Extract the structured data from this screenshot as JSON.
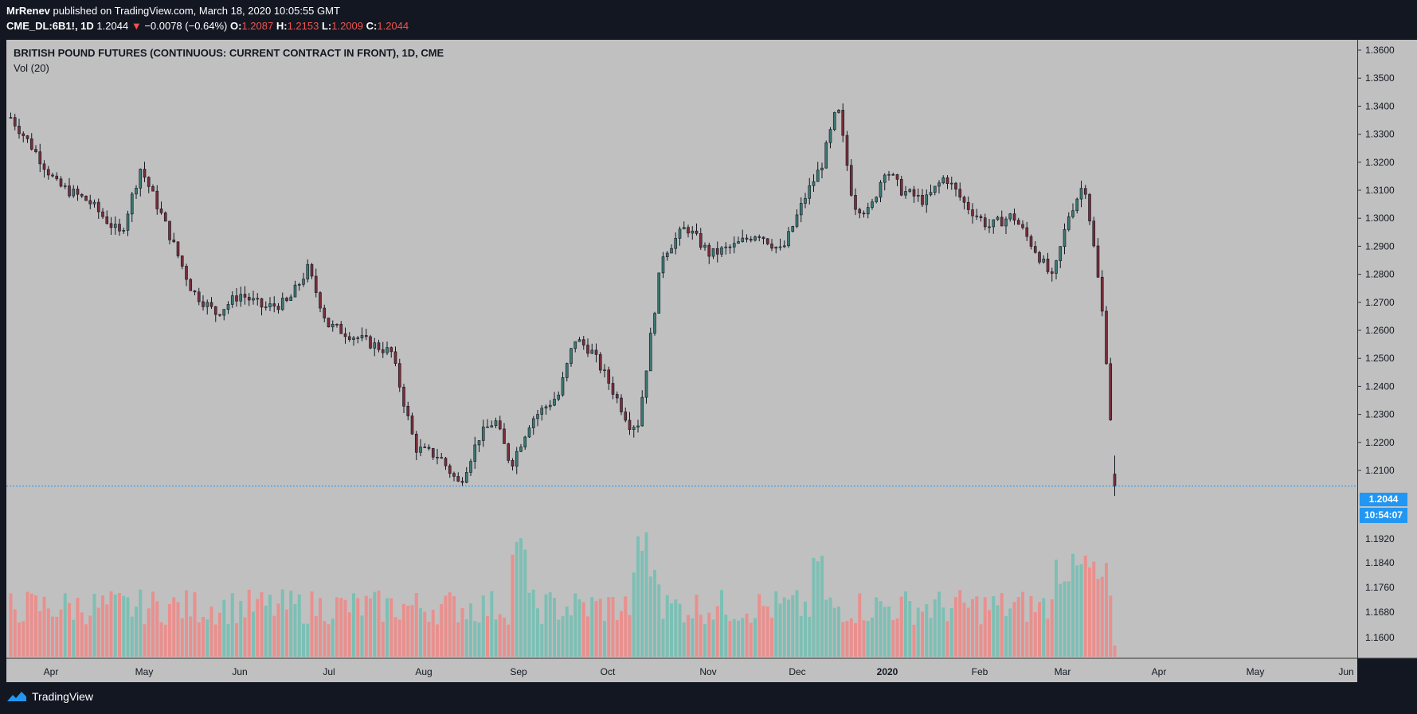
{
  "header": {
    "author": "MrRenev",
    "published_text": "published on TradingView.com, March 18, 2020 10:05:55 GMT",
    "symbol": "CME_DL:6B1!, 1D",
    "last": "1.2044",
    "change": "−0.0078 (−0.64%)",
    "open_label": "O:",
    "open": "1.2087",
    "high_label": "H:",
    "high": "1.2153",
    "low_label": "L:",
    "low": "1.2009",
    "close_label": "C:",
    "close": "1.2044"
  },
  "series_title": "BRITISH POUND FUTURES (CONTINUOUS: CURRENT CONTRACT IN FRONT), 1D, CME",
  "volume_title": "Vol (20)",
  "price_tag": "1.2044",
  "countdown_tag": "10:54:07",
  "footer_brand": "TradingView",
  "colors": {
    "up": "#22ab94",
    "down": "#f23645",
    "vol_up": "#7dbfb4",
    "vol_down": "#e9908e",
    "price_line": "#2196f3"
  },
  "chart_data": {
    "type": "candlestick",
    "title": "BRITISH POUND FUTURES (CONTINUOUS: CURRENT CONTRACT IN FRONT), 1D, CME",
    "y_ticks": [
      "1.3600",
      "1.3500",
      "1.3400",
      "1.3300",
      "1.3200",
      "1.3100",
      "1.3000",
      "1.2900",
      "1.2800",
      "1.2700",
      "1.2600",
      "1.2500",
      "1.2400",
      "1.2300",
      "1.2200",
      "1.2100"
    ],
    "vol_ticks": [
      "1.1920",
      "1.1840",
      "1.1760",
      "1.1680",
      "1.1600"
    ],
    "ylim": [
      1.199,
      1.366
    ],
    "x_labels": [
      "Apr",
      "May",
      "Jun",
      "Jul",
      "Aug",
      "Sep",
      "Oct",
      "Nov",
      "Dec",
      "2020",
      "Feb",
      "Mar",
      "Apr",
      "May",
      "Jun"
    ],
    "last_price": 1.2044,
    "key_points": [
      {
        "date": "2019-03",
        "close": 1.336
      },
      {
        "date": "2019-04",
        "close": 1.303
      },
      {
        "date": "2019-05",
        "close": 1.276
      },
      {
        "date": "2019-06",
        "close": 1.272
      },
      {
        "date": "2019-07",
        "close": 1.255
      },
      {
        "date": "2019-08",
        "close": 1.214
      },
      {
        "date": "2019-09-03",
        "close": 1.205
      },
      {
        "date": "2019-09",
        "close": 1.258
      },
      {
        "date": "2019-10",
        "close": 1.225
      },
      {
        "date": "2019-10-22",
        "close": 1.295
      },
      {
        "date": "2019-11",
        "close": 1.288
      },
      {
        "date": "2019-12-13",
        "close": 1.34
      },
      {
        "date": "2019-12-31",
        "close": 1.325
      },
      {
        "date": "2020-01",
        "close": 1.308
      },
      {
        "date": "2020-02",
        "close": 1.3
      },
      {
        "date": "2020-03-06",
        "close": 1.312
      },
      {
        "date": "2020-03-18",
        "close": 1.2044
      }
    ],
    "grid": false
  }
}
